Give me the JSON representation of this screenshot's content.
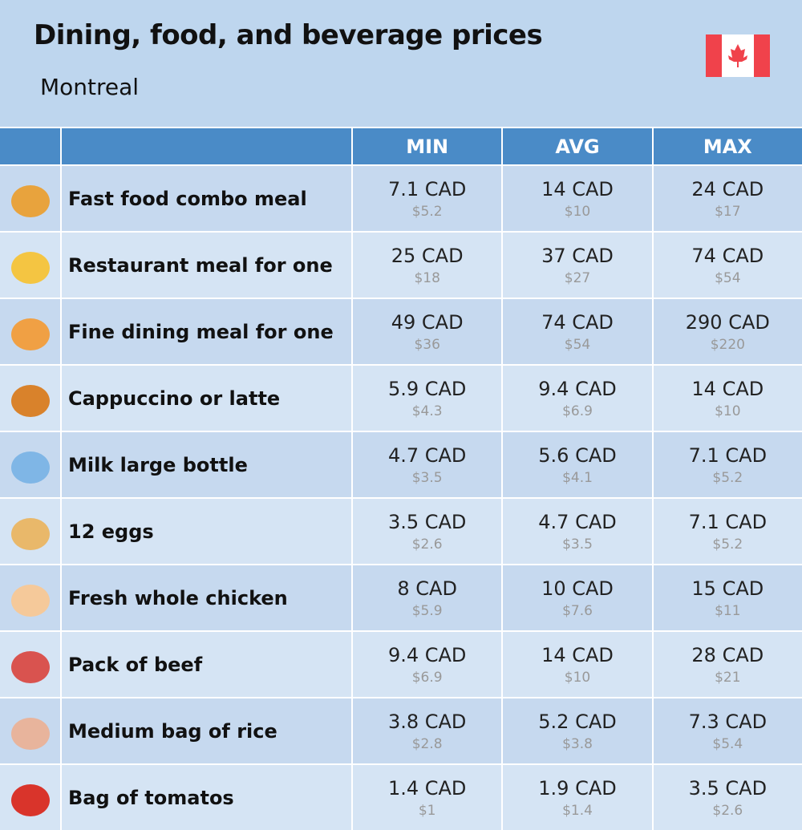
{
  "header": {
    "title": "Dining, food, and beverage prices",
    "subtitle": "Montreal"
  },
  "table": {
    "columns": [
      "MIN",
      "AVG",
      "MAX"
    ],
    "rows": [
      {
        "label": "Fast food combo meal",
        "cells": [
          [
            "7.1 CAD",
            "$5.2"
          ],
          [
            "14 CAD",
            "$10"
          ],
          [
            "24 CAD",
            "$17"
          ]
        ]
      },
      {
        "label": "Restaurant meal for one",
        "cells": [
          [
            "25 CAD",
            "$18"
          ],
          [
            "37 CAD",
            "$27"
          ],
          [
            "74 CAD",
            "$54"
          ]
        ]
      },
      {
        "label": "Fine dining meal for one",
        "cells": [
          [
            "49 CAD",
            "$36"
          ],
          [
            "74 CAD",
            "$54"
          ],
          [
            "290 CAD",
            "$220"
          ]
        ]
      },
      {
        "label": "Cappuccino or latte",
        "cells": [
          [
            "5.9 CAD",
            "$4.3"
          ],
          [
            "9.4 CAD",
            "$6.9"
          ],
          [
            "14 CAD",
            "$10"
          ]
        ]
      },
      {
        "label": "Milk large bottle",
        "cells": [
          [
            "4.7 CAD",
            "$3.5"
          ],
          [
            "5.6 CAD",
            "$4.1"
          ],
          [
            "7.1 CAD",
            "$5.2"
          ]
        ]
      },
      {
        "label": "12 eggs",
        "cells": [
          [
            "3.5 CAD",
            "$2.6"
          ],
          [
            "4.7 CAD",
            "$3.5"
          ],
          [
            "7.1 CAD",
            "$5.2"
          ]
        ]
      },
      {
        "label": "Fresh whole chicken",
        "cells": [
          [
            "8 CAD",
            "$5.9"
          ],
          [
            "10 CAD",
            "$7.6"
          ],
          [
            "15 CAD",
            "$11"
          ]
        ]
      },
      {
        "label": "Pack of beef",
        "cells": [
          [
            "9.4 CAD",
            "$6.9"
          ],
          [
            "14 CAD",
            "$10"
          ],
          [
            "28 CAD",
            "$21"
          ]
        ]
      },
      {
        "label": "Medium bag of rice",
        "cells": [
          [
            "3.8 CAD",
            "$2.8"
          ],
          [
            "5.2 CAD",
            "$3.8"
          ],
          [
            "7.3 CAD",
            "$5.4"
          ]
        ]
      },
      {
        "label": "Bag of tomatos",
        "cells": [
          [
            "1.4 CAD",
            "$1"
          ],
          [
            "1.9 CAD",
            "$1.4"
          ],
          [
            "3.5 CAD",
            "$2.6"
          ]
        ]
      }
    ]
  }
}
